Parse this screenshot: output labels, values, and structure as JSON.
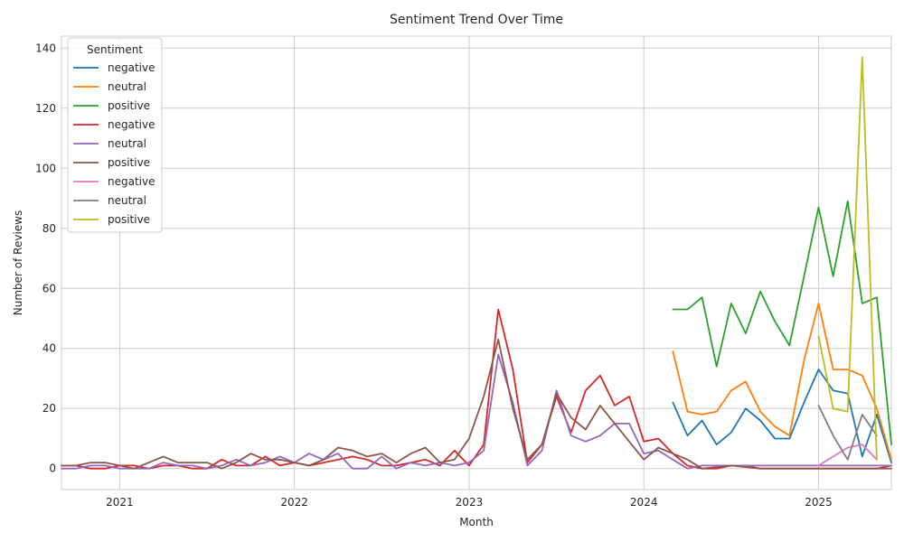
{
  "chart_data": {
    "type": "line",
    "title": "Sentiment Trend Over Time",
    "xlabel": "Month",
    "ylabel": "Number of Reviews",
    "x_ticks": [
      "2021",
      "2022",
      "2023",
      "2024",
      "2025"
    ],
    "y_ticks": [
      0,
      20,
      40,
      60,
      80,
      100,
      120,
      140
    ],
    "xlim": [
      "2020-09-01",
      "2025-06-01"
    ],
    "ylim": [
      -7,
      144
    ],
    "grid": true,
    "legend": {
      "title": "Sentiment",
      "placement": "top-left"
    },
    "series": [
      {
        "name": "negative",
        "color": "#1f77b4",
        "x": [
          "2024-03-01",
          "2024-04-01",
          "2024-05-01",
          "2024-06-01",
          "2024-07-01",
          "2024-08-01",
          "2024-09-01",
          "2024-10-01",
          "2024-11-01",
          "2024-12-01",
          "2025-01-01",
          "2025-02-01",
          "2025-03-01",
          "2025-04-01",
          "2025-05-01",
          "2025-06-01"
        ],
        "values": [
          22,
          11,
          16,
          8,
          12,
          20,
          16,
          10,
          10,
          22,
          33,
          26,
          25,
          4,
          18,
          2
        ]
      },
      {
        "name": "neutral",
        "color": "#ff7f0e",
        "x": [
          "2024-03-01",
          "2024-04-01",
          "2024-05-01",
          "2024-06-01",
          "2024-07-01",
          "2024-08-01",
          "2024-09-01",
          "2024-10-01",
          "2024-11-01",
          "2024-12-01",
          "2025-01-01",
          "2025-02-01",
          "2025-03-01",
          "2025-04-01",
          "2025-05-01",
          "2025-06-01"
        ],
        "values": [
          39,
          19,
          18,
          19,
          26,
          29,
          19,
          14,
          11,
          36,
          55,
          33,
          33,
          31,
          20,
          3
        ]
      },
      {
        "name": "positive",
        "color": "#2ca02c",
        "x": [
          "2024-03-01",
          "2024-04-01",
          "2024-05-01",
          "2024-06-01",
          "2024-07-01",
          "2024-08-01",
          "2024-09-01",
          "2024-10-01",
          "2024-11-01",
          "2024-12-01",
          "2025-01-01",
          "2025-02-01",
          "2025-03-01",
          "2025-04-01",
          "2025-05-01",
          "2025-06-01"
        ],
        "values": [
          53,
          53,
          57,
          34,
          55,
          45,
          59,
          49,
          41,
          64,
          87,
          64,
          89,
          55,
          57,
          8
        ]
      },
      {
        "name": "negative",
        "color": "#d62728",
        "x": [
          "2020-09-01",
          "2020-10-01",
          "2020-11-01",
          "2020-12-01",
          "2021-01-01",
          "2021-02-01",
          "2021-03-01",
          "2021-04-01",
          "2021-05-01",
          "2021-06-01",
          "2021-07-01",
          "2021-08-01",
          "2021-09-01",
          "2021-10-01",
          "2021-11-01",
          "2021-12-01",
          "2022-01-01",
          "2022-02-01",
          "2022-03-01",
          "2022-04-01",
          "2022-05-01",
          "2022-06-01",
          "2022-07-01",
          "2022-08-01",
          "2022-09-01",
          "2022-10-01",
          "2022-11-01",
          "2022-12-01",
          "2023-01-01",
          "2023-02-01",
          "2023-03-01",
          "2023-04-01",
          "2023-05-01",
          "2023-06-01",
          "2023-07-01",
          "2023-08-01",
          "2023-09-01",
          "2023-10-01",
          "2023-11-01",
          "2023-12-01",
          "2024-01-01",
          "2024-02-01",
          "2024-03-01",
          "2024-04-01",
          "2024-05-01",
          "2024-06-01",
          "2024-07-01",
          "2024-08-01",
          "2024-09-01",
          "2024-10-01",
          "2024-11-01",
          "2024-12-01",
          "2025-01-01",
          "2025-02-01",
          "2025-03-01",
          "2025-04-01",
          "2025-05-01",
          "2025-06-01"
        ],
        "values": [
          1,
          1,
          0,
          0,
          1,
          1,
          0,
          1,
          1,
          0,
          0,
          3,
          1,
          1,
          4,
          1,
          2,
          1,
          2,
          3,
          4,
          3,
          1,
          1,
          2,
          3,
          1,
          6,
          1,
          8,
          53,
          33,
          2,
          8,
          24,
          12,
          26,
          31,
          21,
          24,
          9,
          10,
          5,
          1,
          0,
          0,
          1,
          1,
          0,
          0,
          0,
          0,
          0,
          0,
          0,
          0,
          0,
          1
        ]
      },
      {
        "name": "neutral",
        "color": "#9467bd",
        "x": [
          "2020-09-01",
          "2020-10-01",
          "2020-11-01",
          "2020-12-01",
          "2021-01-01",
          "2021-02-01",
          "2021-03-01",
          "2021-04-01",
          "2021-05-01",
          "2021-06-01",
          "2021-07-01",
          "2021-08-01",
          "2021-09-01",
          "2021-10-01",
          "2021-11-01",
          "2021-12-01",
          "2022-01-01",
          "2022-02-01",
          "2022-03-01",
          "2022-04-01",
          "2022-05-01",
          "2022-06-01",
          "2022-07-01",
          "2022-08-01",
          "2022-09-01",
          "2022-10-01",
          "2022-11-01",
          "2022-12-01",
          "2023-01-01",
          "2023-02-01",
          "2023-03-01",
          "2023-04-01",
          "2023-05-01",
          "2023-06-01",
          "2023-07-01",
          "2023-08-01",
          "2023-09-01",
          "2023-10-01",
          "2023-11-01",
          "2023-12-01",
          "2024-01-01",
          "2024-02-01",
          "2024-03-01",
          "2024-04-01",
          "2024-05-01",
          "2024-06-01",
          "2024-07-01",
          "2024-08-01",
          "2024-09-01",
          "2024-10-01",
          "2024-11-01",
          "2024-12-01",
          "2025-01-01",
          "2025-02-01",
          "2025-03-01",
          "2025-04-01",
          "2025-05-01",
          "2025-06-01"
        ],
        "values": [
          0,
          0,
          1,
          1,
          0,
          0,
          0,
          2,
          1,
          1,
          0,
          1,
          3,
          1,
          2,
          4,
          2,
          5,
          3,
          5,
          0,
          0,
          4,
          0,
          2,
          1,
          2,
          1,
          2,
          6,
          38,
          22,
          1,
          6,
          26,
          11,
          9,
          11,
          15,
          15,
          5,
          6,
          3,
          0,
          1,
          1,
          1,
          1,
          1,
          1,
          1,
          1,
          1,
          1,
          1,
          1,
          1,
          1
        ]
      },
      {
        "name": "positive",
        "color": "#8c564b",
        "x": [
          "2020-09-01",
          "2020-10-01",
          "2020-11-01",
          "2020-12-01",
          "2021-01-01",
          "2021-02-01",
          "2021-03-01",
          "2021-04-01",
          "2021-05-01",
          "2021-06-01",
          "2021-07-01",
          "2021-08-01",
          "2021-09-01",
          "2021-10-01",
          "2021-11-01",
          "2021-12-01",
          "2022-01-01",
          "2022-02-01",
          "2022-03-01",
          "2022-04-01",
          "2022-05-01",
          "2022-06-01",
          "2022-07-01",
          "2022-08-01",
          "2022-09-01",
          "2022-10-01",
          "2022-11-01",
          "2022-12-01",
          "2023-01-01",
          "2023-02-01",
          "2023-03-01",
          "2023-04-01",
          "2023-05-01",
          "2023-06-01",
          "2023-07-01",
          "2023-08-01",
          "2023-09-01",
          "2023-10-01",
          "2023-11-01",
          "2023-12-01",
          "2024-01-01",
          "2024-02-01",
          "2024-03-01",
          "2024-04-01",
          "2024-05-01",
          "2024-06-01",
          "2024-07-01",
          "2024-08-01",
          "2024-09-01",
          "2024-10-01",
          "2024-11-01",
          "2024-12-01",
          "2025-01-01",
          "2025-02-01",
          "2025-03-01",
          "2025-04-01",
          "2025-05-01",
          "2025-06-01"
        ],
        "values": [
          1,
          1,
          2,
          2,
          1,
          0,
          2,
          4,
          2,
          2,
          2,
          0,
          2,
          5,
          3,
          3,
          2,
          1,
          3,
          7,
          6,
          4,
          5,
          2,
          5,
          7,
          2,
          3,
          10,
          24,
          43,
          20,
          3,
          8,
          25,
          17,
          13,
          21,
          15,
          9,
          3,
          7,
          5,
          3,
          0,
          0.5,
          1,
          0.5,
          0,
          0,
          0,
          0,
          0,
          0,
          0,
          0,
          0,
          0
        ]
      },
      {
        "name": "negative",
        "color": "#e377c2",
        "x": [
          "2025-01-01",
          "2025-02-01",
          "2025-03-01",
          "2025-04-01",
          "2025-05-01"
        ],
        "values": [
          1,
          4,
          7,
          8,
          3
        ]
      },
      {
        "name": "neutral",
        "color": "#7f7f7f",
        "x": [
          "2025-01-01",
          "2025-02-01",
          "2025-03-01",
          "2025-04-01",
          "2025-05-01"
        ],
        "values": [
          21,
          11,
          3,
          18,
          11
        ]
      },
      {
        "name": "positive",
        "color": "#bcbd22",
        "x": [
          "2025-01-01",
          "2025-02-01",
          "2025-03-01",
          "2025-04-01",
          "2025-05-01"
        ],
        "values": [
          44,
          20,
          19,
          137,
          3
        ]
      }
    ]
  }
}
